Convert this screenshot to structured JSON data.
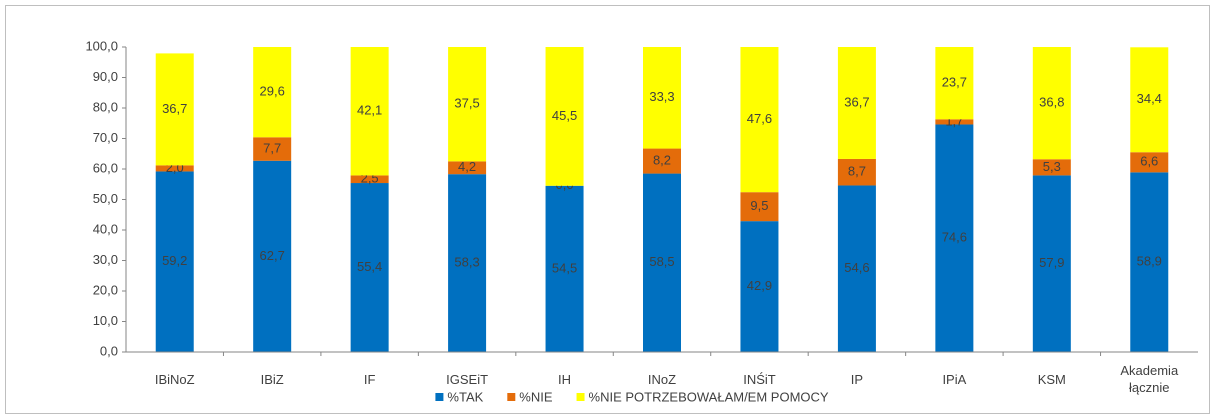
{
  "chart_data": {
    "type": "stacked_bar",
    "categories": [
      "IBiNoZ",
      "IBiZ",
      "IF",
      "IGSEiT",
      "IH",
      "INoZ",
      "INŚiT",
      "IP",
      "IPiA",
      "KSM",
      "Akademia łącznie"
    ],
    "series": [
      {
        "name": "%TAK",
        "color": "#0070c0",
        "values": [
          59.2,
          62.7,
          55.4,
          58.3,
          54.5,
          58.5,
          42.9,
          54.6,
          74.6,
          57.9,
          58.9
        ],
        "value_labels": [
          "59,2",
          "62,7",
          "55,4",
          "58,3",
          "54,5",
          "58,5",
          "42,9",
          "54,6",
          "74,6",
          "57,9",
          "58,9"
        ]
      },
      {
        "name": "%NIE",
        "color": "#e46c0a",
        "values": [
          2.0,
          7.7,
          2.5,
          4.2,
          0.0,
          8.2,
          9.5,
          8.7,
          1.7,
          5.3,
          6.6
        ],
        "value_labels": [
          "2,0",
          "7,7",
          "2,5",
          "4,2",
          "0,0",
          "8,2",
          "9,5",
          "8,7",
          "1,7",
          "5,3",
          "6,6"
        ]
      },
      {
        "name": "%NIE POTRZEBOWAŁAM/EM POMOCY",
        "color": "#ffff00",
        "values": [
          36.7,
          29.6,
          42.1,
          37.5,
          45.5,
          33.3,
          47.6,
          36.7,
          23.7,
          36.8,
          34.4
        ],
        "value_labels": [
          "36,7",
          "29,6",
          "42,1",
          "37,5",
          "45,5",
          "33,3",
          "47,6",
          "36,7",
          "23,7",
          "36,8",
          "34,4"
        ]
      }
    ],
    "ylim": [
      0,
      100
    ],
    "yticks": [
      {
        "value": 0,
        "label": "0,0"
      },
      {
        "value": 10,
        "label": "10,0"
      },
      {
        "value": 20,
        "label": "20,0"
      },
      {
        "value": 30,
        "label": "30,0"
      },
      {
        "value": 40,
        "label": "40,0"
      },
      {
        "value": 50,
        "label": "50,0"
      },
      {
        "value": 60,
        "label": "60,0"
      },
      {
        "value": 70,
        "label": "70,0"
      },
      {
        "value": 80,
        "label": "80,0"
      },
      {
        "value": 90,
        "label": "90,0"
      },
      {
        "value": 100,
        "label": "100,0"
      }
    ],
    "grid": false,
    "legend": "bottom"
  }
}
